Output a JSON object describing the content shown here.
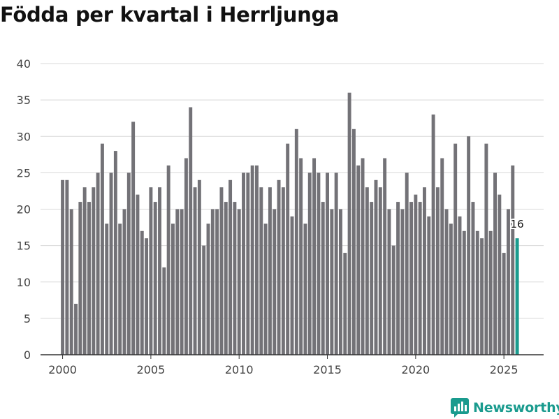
{
  "title": "Födda per kvartal i Herrljunga",
  "brand": {
    "name": "Newsworthy",
    "color": "#1a9b8e",
    "icon": "newsworthy-logo-icon"
  },
  "colors": {
    "bar": "#737277",
    "highlight": "#1a9b8e",
    "grid": "#d8d8d8",
    "axis": "#333333",
    "tick_text": "#444444"
  },
  "chart_data": {
    "type": "bar",
    "title": "Födda per kvartal i Herrljunga",
    "xlabel": "",
    "ylabel": "",
    "ylim": [
      0,
      40
    ],
    "yticks": [
      0,
      5,
      10,
      15,
      20,
      25,
      30,
      35,
      40
    ],
    "x_start": 2000.0,
    "x_step": 0.25,
    "xlim": [
      1998.75,
      2027.25
    ],
    "xticks": [
      2000,
      2005,
      2010,
      2015,
      2020,
      2025
    ],
    "values": [
      24,
      24,
      20,
      7,
      21,
      23,
      21,
      23,
      25,
      29,
      18,
      25,
      28,
      18,
      20,
      25,
      32,
      22,
      17,
      16,
      23,
      21,
      23,
      12,
      26,
      18,
      20,
      20,
      27,
      34,
      23,
      24,
      15,
      18,
      20,
      20,
      23,
      21,
      24,
      21,
      20,
      25,
      25,
      26,
      26,
      23,
      18,
      23,
      20,
      24,
      23,
      29,
      19,
      31,
      27,
      18,
      25,
      27,
      25,
      21,
      25,
      20,
      25,
      20,
      14,
      36,
      31,
      26,
      27,
      23,
      21,
      24,
      23,
      27,
      20,
      15,
      21,
      20,
      25,
      21,
      22,
      21,
      23,
      19,
      33,
      23,
      27,
      20,
      18,
      29,
      19,
      17,
      30,
      21,
      17,
      16,
      29,
      17,
      25,
      22,
      14,
      20,
      26,
      16
    ],
    "highlight_index": 103,
    "highlight_label": "16"
  }
}
